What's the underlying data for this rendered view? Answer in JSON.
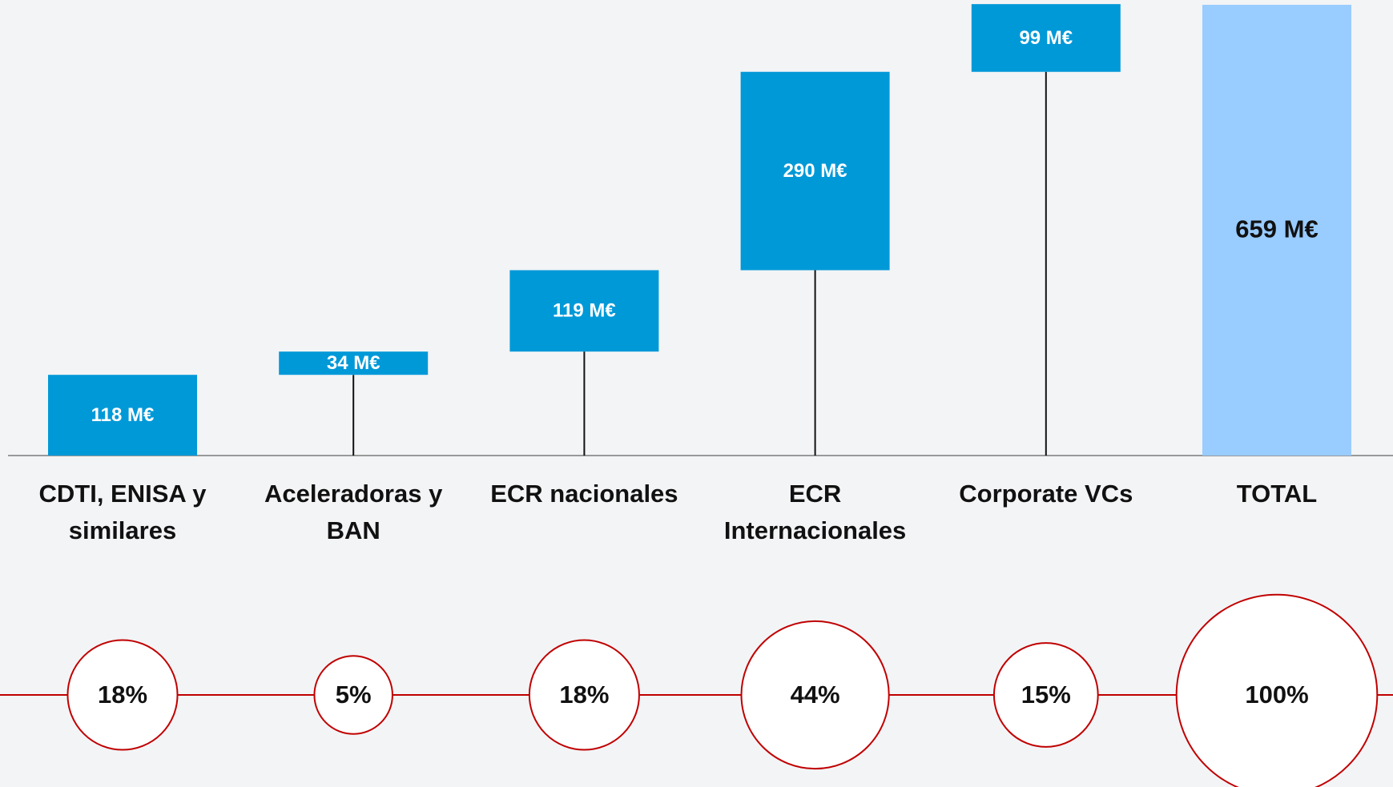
{
  "chart_data": {
    "type": "waterfall",
    "categories": [
      "CDTI, ENISA y similares",
      "Aceleradoras y BAN",
      "ECR nacionales",
      "ECR Internacionales",
      "Corporate VCs",
      "TOTAL"
    ],
    "values": [
      118,
      34,
      119,
      290,
      99,
      659
    ],
    "value_labels": [
      "118 M€",
      "34 M€",
      "119 M€",
      "290 M€",
      "99 M€",
      "659 M€"
    ],
    "color": "#0099d8",
    "total_color": "#99ccff",
    "shares": {
      "values": [
        18,
        5,
        18,
        44,
        15,
        100
      ],
      "value_labels": [
        "18%",
        "5%",
        "18%",
        "44%",
        "15%",
        "100%"
      ],
      "color": "#c00000"
    }
  }
}
